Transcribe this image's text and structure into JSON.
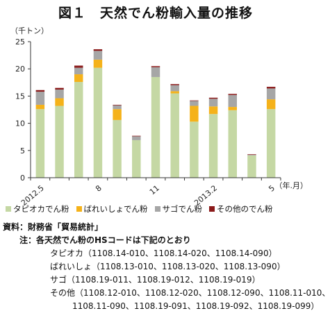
{
  "chart_data": {
    "type": "bar",
    "stacked": true,
    "title": "図１　天然でん粉輸入量の推移",
    "ylabel": "（千トン）",
    "xlabel": "（年.月）",
    "ylim": [
      0,
      25
    ],
    "yticks": [
      0,
      5,
      10,
      15,
      20,
      25
    ],
    "grid": false,
    "legend_position": "bottom",
    "categories": [
      "2012.5",
      "2012.6",
      "2012.7",
      "2012.8",
      "2012.9",
      "2012.10",
      "2012.11",
      "2012.12",
      "2013.1",
      "2013.2",
      "2013.3",
      "2013.4",
      "2013.5"
    ],
    "x_tick_labels": [
      {
        "index": 0,
        "label": "2012.5"
      },
      {
        "index": 3,
        "label": "8"
      },
      {
        "index": 6,
        "label": "11"
      },
      {
        "index": 9,
        "label": "2013.2"
      },
      {
        "index": 12,
        "label": "5"
      }
    ],
    "series": [
      {
        "name": "タピオカでん粉",
        "color": "#c5d8a4",
        "values": [
          12.6,
          13.2,
          17.6,
          20.2,
          10.6,
          6.9,
          18.5,
          15.5,
          10.3,
          11.7,
          12.4,
          4.1,
          12.6
        ]
      },
      {
        "name": "ばれいしょでん粉",
        "color": "#f5b21a",
        "values": [
          0.8,
          1.4,
          1.4,
          1.5,
          2.0,
          0.0,
          0.0,
          0.4,
          2.9,
          1.4,
          0.6,
          0.0,
          1.8
        ]
      },
      {
        "name": "サゴでん粉",
        "color": "#a6a6a6",
        "values": [
          2.4,
          1.6,
          1.2,
          1.6,
          0.7,
          0.7,
          1.8,
          1.1,
          0.9,
          1.4,
          2.2,
          0.1,
          2.0
        ]
      },
      {
        "name": "その他のでん粉",
        "color": "#8b1a1a",
        "values": [
          0.3,
          0.3,
          0.4,
          0.3,
          0.1,
          0.1,
          0.2,
          0.2,
          0.1,
          0.2,
          0.2,
          0.1,
          0.3
        ]
      }
    ]
  },
  "notes": {
    "source_label": "資料：",
    "source_text": "財務省「貿易統計」",
    "note_label": "注：",
    "note_head": "各天然でん粉のHSコードは下記のとおり",
    "lines": [
      "タピオカ（1108.14-010、1108.14-020、1108.14-090）",
      "ばれいしょ（1108.13-010、1108.13-020、1108.13-090）",
      "サゴ（1108.19-011、1108.19-012、1108.19-019）",
      "その他（1108.12-010、1108.12-020、1108.12-090、1108.11-010、"
    ],
    "continuation": "1108.11-090、1108.19-091、1108.19-092、1108.19-099）"
  }
}
